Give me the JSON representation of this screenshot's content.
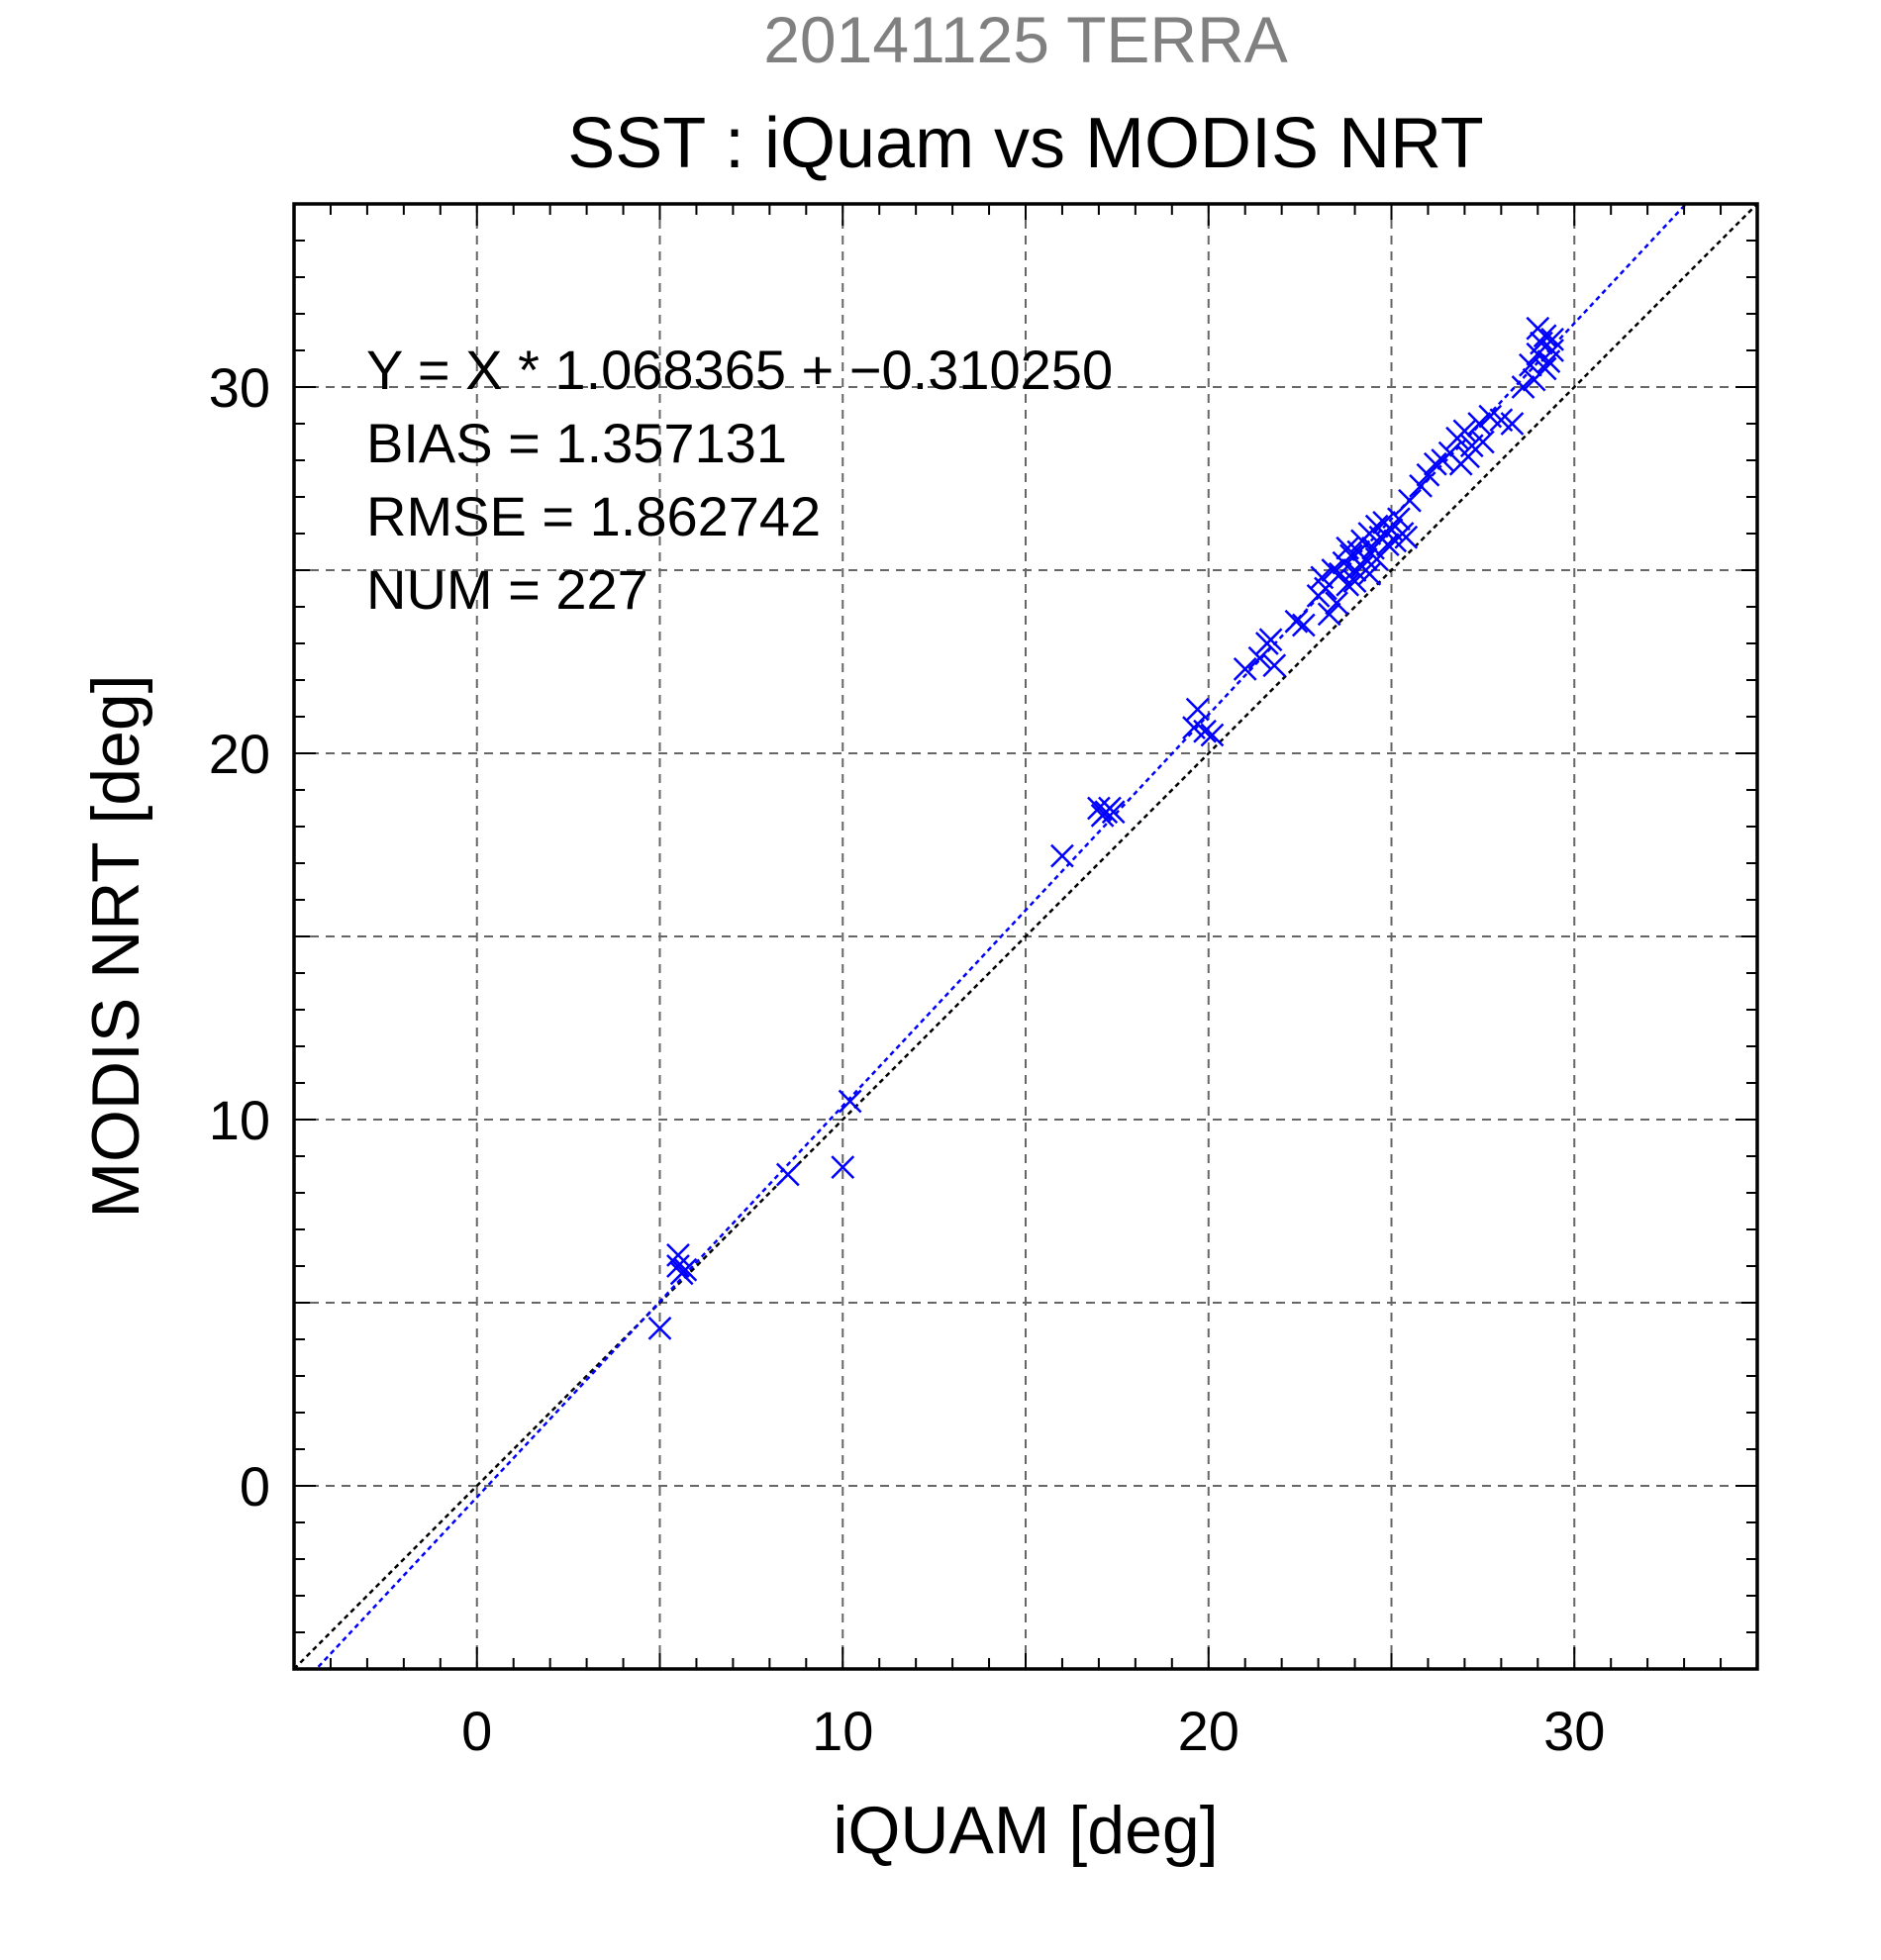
{
  "chart_data": {
    "type": "scatter",
    "title": "20141125 TERRA",
    "subtitle": "SST : iQuam vs MODIS NRT",
    "xlabel": "iQUAM [deg]",
    "ylabel": "MODIS NRT [deg]",
    "xlim": [
      -5,
      35
    ],
    "ylim": [
      -5,
      35
    ],
    "xticks": [
      0,
      10,
      20,
      30
    ],
    "yticks": [
      0,
      10,
      20,
      30
    ],
    "grid": true,
    "colors": {
      "points": "#0000ff",
      "fit_line": "#0000ff",
      "identity_line": "#000000",
      "title": "#808080"
    },
    "annotations": [
      "Y = X * 1.068365 + −0.310250",
      "BIAS = 1.357131",
      "RMSE = 1.862742",
      "NUM = 227"
    ],
    "fit": {
      "slope": 1.068365,
      "intercept": -0.31025
    },
    "series": [
      {
        "marker": "x",
        "points": [
          [
            5.0,
            4.3
          ],
          [
            5.5,
            6.3
          ],
          [
            5.6,
            5.8
          ],
          [
            5.7,
            5.9
          ],
          [
            5.5,
            6.0
          ],
          [
            8.5,
            8.5
          ],
          [
            10.0,
            8.7
          ],
          [
            10.2,
            10.5
          ],
          [
            16.0,
            17.2
          ],
          [
            17.0,
            18.5
          ],
          [
            17.2,
            18.4
          ],
          [
            17.4,
            18.4
          ],
          [
            17.1,
            18.3
          ],
          [
            17.3,
            18.5
          ],
          [
            19.6,
            20.7
          ],
          [
            19.7,
            21.2
          ],
          [
            19.9,
            20.6
          ],
          [
            20.1,
            20.5
          ],
          [
            21.0,
            22.3
          ],
          [
            21.4,
            22.6
          ],
          [
            21.6,
            23.0
          ],
          [
            21.8,
            22.4
          ],
          [
            21.7,
            23.1
          ],
          [
            22.4,
            23.6
          ],
          [
            22.6,
            23.5
          ],
          [
            23.0,
            24.3
          ],
          [
            23.1,
            24.8
          ],
          [
            23.2,
            24.5
          ],
          [
            23.3,
            23.8
          ],
          [
            23.4,
            25.0
          ],
          [
            23.5,
            24.1
          ],
          [
            23.6,
            24.9
          ],
          [
            23.7,
            25.2
          ],
          [
            23.8,
            24.6
          ],
          [
            23.9,
            25.4
          ],
          [
            24.0,
            25.0
          ],
          [
            24.1,
            25.5
          ],
          [
            24.2,
            25.8
          ],
          [
            24.3,
            25.3
          ],
          [
            24.4,
            26.0
          ],
          [
            24.5,
            25.6
          ],
          [
            24.6,
            26.2
          ],
          [
            24.7,
            25.9
          ],
          [
            24.8,
            26.3
          ],
          [
            24.9,
            25.7
          ],
          [
            25.0,
            26.1
          ],
          [
            25.1,
            25.8
          ],
          [
            25.2,
            26.4
          ],
          [
            25.3,
            26.0
          ],
          [
            25.4,
            25.9
          ],
          [
            24.2,
            25.1
          ],
          [
            24.6,
            25.3
          ],
          [
            24.0,
            24.7
          ],
          [
            23.8,
            25.6
          ],
          [
            24.4,
            24.9
          ],
          [
            25.5,
            26.9
          ],
          [
            25.8,
            27.3
          ],
          [
            26.0,
            27.6
          ],
          [
            26.2,
            27.9
          ],
          [
            26.4,
            28.0
          ],
          [
            26.6,
            28.2
          ],
          [
            26.8,
            28.6
          ],
          [
            26.9,
            27.9
          ],
          [
            27.0,
            28.8
          ],
          [
            27.1,
            28.1
          ],
          [
            27.2,
            28.4
          ],
          [
            27.4,
            29.0
          ],
          [
            27.5,
            28.5
          ],
          [
            27.7,
            29.2
          ],
          [
            28.0,
            29.1
          ],
          [
            28.3,
            29.0
          ],
          [
            28.6,
            30.0
          ],
          [
            28.8,
            30.6
          ],
          [
            28.9,
            30.2
          ],
          [
            29.0,
            30.9
          ],
          [
            29.1,
            31.2
          ],
          [
            29.2,
            31.4
          ],
          [
            29.3,
            30.7
          ],
          [
            29.4,
            31.0
          ],
          [
            29.0,
            31.6
          ],
          [
            29.2,
            30.5
          ],
          [
            29.4,
            31.3
          ]
        ]
      }
    ]
  }
}
